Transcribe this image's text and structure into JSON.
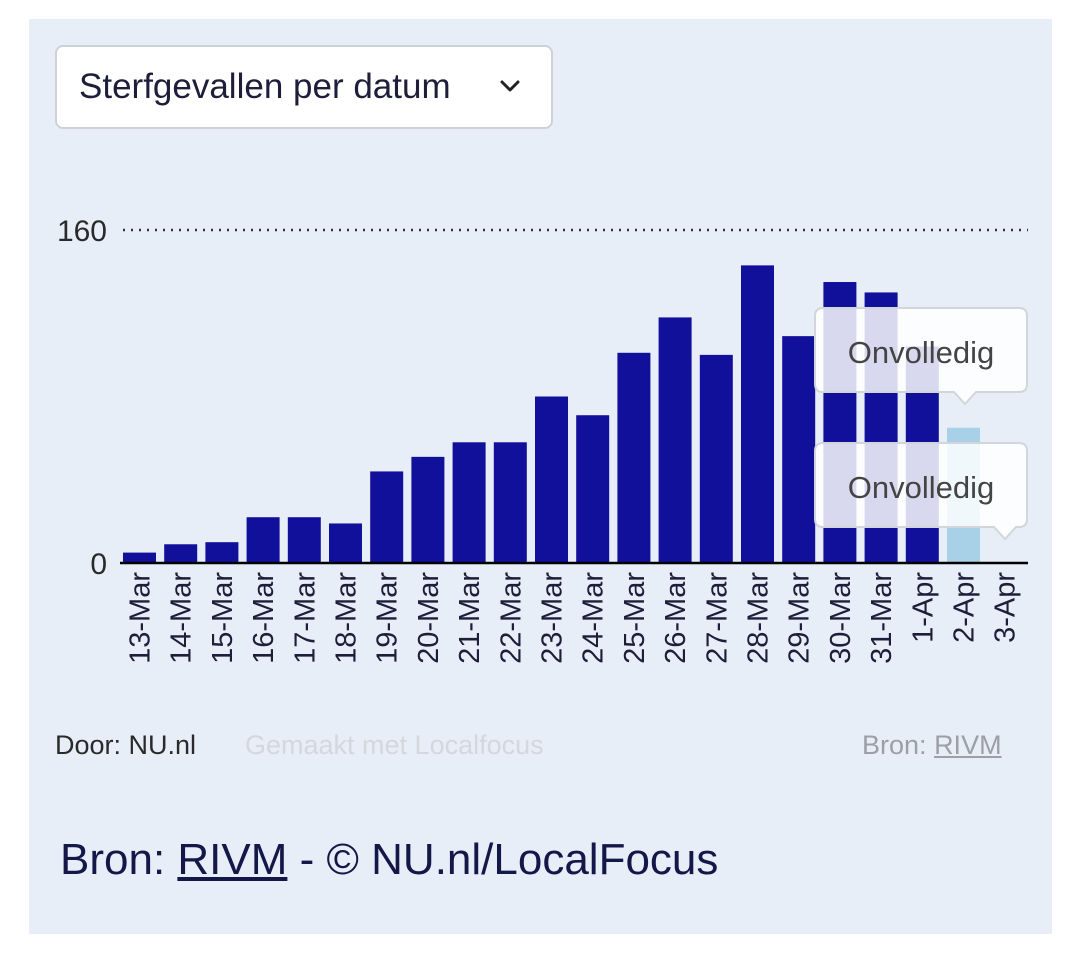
{
  "dropdown": {
    "selected": "Sterfgevallen per datum",
    "icon": "chevron-down-icon"
  },
  "chart_data": {
    "type": "bar",
    "categories": [
      "13-Mar",
      "14-Mar",
      "15-Mar",
      "16-Mar",
      "17-Mar",
      "18-Mar",
      "19-Mar",
      "20-Mar",
      "21-Mar",
      "22-Mar",
      "23-Mar",
      "24-Mar",
      "25-Mar",
      "26-Mar",
      "27-Mar",
      "28-Mar",
      "29-Mar",
      "30-Mar",
      "31-Mar",
      "1-Apr",
      "2-Apr",
      "3-Apr"
    ],
    "values": [
      5,
      9,
      10,
      22,
      22,
      19,
      44,
      51,
      58,
      58,
      80,
      71,
      101,
      118,
      100,
      143,
      109,
      135,
      130,
      104,
      65,
      0
    ],
    "incomplete": [
      false,
      false,
      false,
      false,
      false,
      false,
      false,
      false,
      false,
      false,
      false,
      false,
      false,
      false,
      false,
      false,
      false,
      false,
      false,
      false,
      true,
      true
    ],
    "ylim": [
      0,
      160
    ],
    "yticks": [
      0,
      160
    ],
    "title": "",
    "xlabel": "",
    "ylabel": "",
    "annotations": [
      "Onvolledig",
      "Onvolledig"
    ],
    "colors": {
      "bar": "#10109a",
      "incomplete": "#a8d0e6",
      "axis": "#000000"
    }
  },
  "footer": {
    "by": "Door: NU.nl",
    "made_with": "Gemaakt met Localfocus",
    "source_label": "Bron:",
    "source_link": "RIVM"
  },
  "source_line": {
    "prefix": "Bron: ",
    "link": "RIVM",
    "suffix": " - © NU.nl/LocalFocus"
  }
}
